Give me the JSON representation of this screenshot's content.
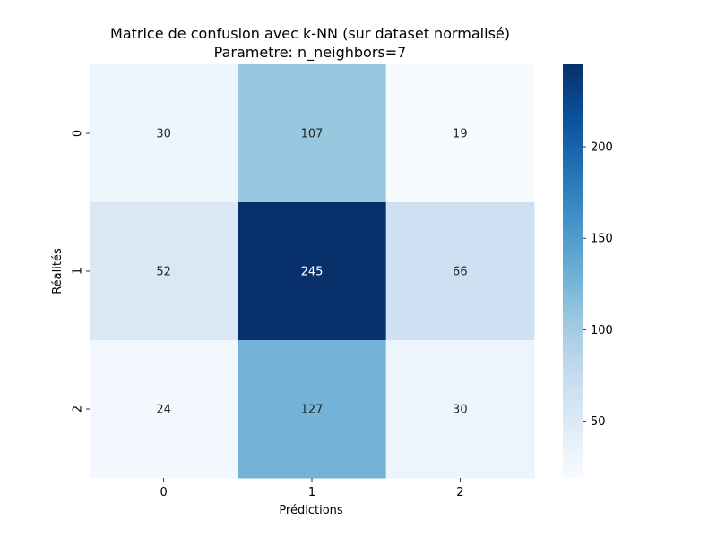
{
  "chart_data": {
    "type": "heatmap",
    "title": "Matrice de confusion avec k-NN (sur dataset normalisé)",
    "subtitle": "Parametre: n_neighbors=7",
    "xlabel": "Prédictions",
    "ylabel": "Réalités",
    "x_categories": [
      "0",
      "1",
      "2"
    ],
    "y_categories": [
      "0",
      "1",
      "2"
    ],
    "values": [
      [
        30,
        107,
        19
      ],
      [
        52,
        245,
        66
      ],
      [
        24,
        127,
        30
      ]
    ],
    "colormap": "Blues",
    "color_range": [
      19,
      245
    ],
    "colorbar_ticks": [
      50,
      100,
      150,
      200
    ],
    "colorbar_tick_labels": [
      "50",
      "100",
      "150",
      "200"
    ],
    "colorbar_position": "right",
    "grid": false
  }
}
